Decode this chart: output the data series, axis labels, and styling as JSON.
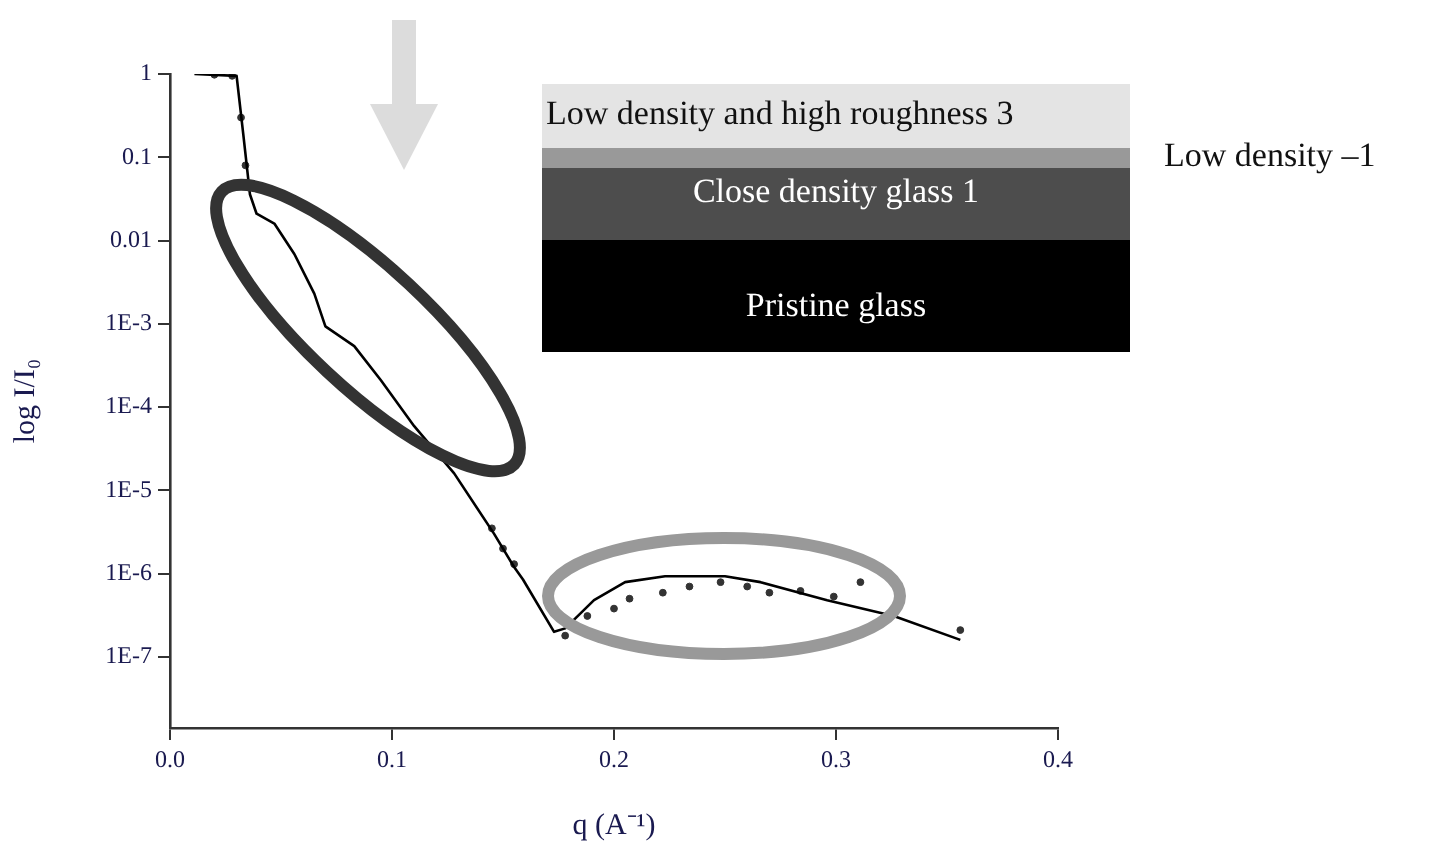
{
  "chart_data": {
    "type": "scatter",
    "xlabel": "q (A⁻¹)",
    "ylabel": "log I/I₀",
    "xlim": [
      0,
      0.4
    ],
    "ylim": [
      1.4e-08,
      1
    ],
    "log": "y",
    "grid": false,
    "legend": false,
    "xticks": [
      {
        "value": 0,
        "label": "0.0"
      },
      0.1,
      0.2,
      0.3,
      0.4
    ],
    "yticks": [
      1,
      0.1,
      0.01,
      {
        "value": 0.001,
        "label": "1E-3"
      },
      {
        "value": 0.0001,
        "label": "1E-4"
      },
      {
        "value": 1e-05,
        "label": "1E-5"
      },
      {
        "value": 1e-06,
        "label": "1E-6"
      },
      {
        "value": 1e-07,
        "label": "1E-7"
      }
    ],
    "series": [
      {
        "type": "line",
        "color": "#000000",
        "marker": "none",
        "line_style": "solid",
        "x": [
          0.011,
          0.03,
          0.033,
          0.036,
          0.039,
          0.047,
          0.056,
          0.065,
          0.07,
          0.083,
          0.095,
          0.11,
          0.128,
          0.146,
          0.155,
          0.159,
          0.173,
          0.178,
          0.191,
          0.205,
          0.223,
          0.25,
          0.266,
          0.296,
          0.326,
          0.356
        ],
        "values": [
          1,
          0.95,
          0.19,
          0.036,
          0.021,
          0.016,
          0.0069,
          0.0023,
          0.00093,
          0.00054,
          0.00021,
          5.9e-05,
          1.6e-05,
          3e-06,
          1.2e-06,
          8.5e-07,
          2e-07,
          2.2e-07,
          4.8e-07,
          7.9e-07,
          9.3e-07,
          9.3e-07,
          7.9e-07,
          4.8e-07,
          3.1e-07,
          1.6e-07
        ]
      },
      {
        "color": "#333333",
        "marker": "circle",
        "x": [
          0.02,
          0.028,
          0.032,
          0.034,
          0.145,
          0.15,
          0.155,
          0.178,
          0.188,
          0.2,
          0.207,
          0.222,
          0.234,
          0.248,
          0.26,
          0.27,
          0.284,
          0.299,
          0.311,
          0.356
        ],
        "values": [
          0.98,
          0.95,
          0.3,
          0.08,
          3.5e-06,
          2e-06,
          1.3e-06,
          1.8e-07,
          3.1e-07,
          3.8e-07,
          5e-07,
          5.9e-07,
          7e-07,
          7.9e-07,
          7e-07,
          5.9e-07,
          6.2e-07,
          5.3e-07,
          7.9e-07,
          2.1e-07
        ]
      }
    ],
    "annotations": [
      "Low density and high roughness 3",
      "Close density glass 1",
      "Pristine glass",
      "Low density –1"
    ]
  }
}
